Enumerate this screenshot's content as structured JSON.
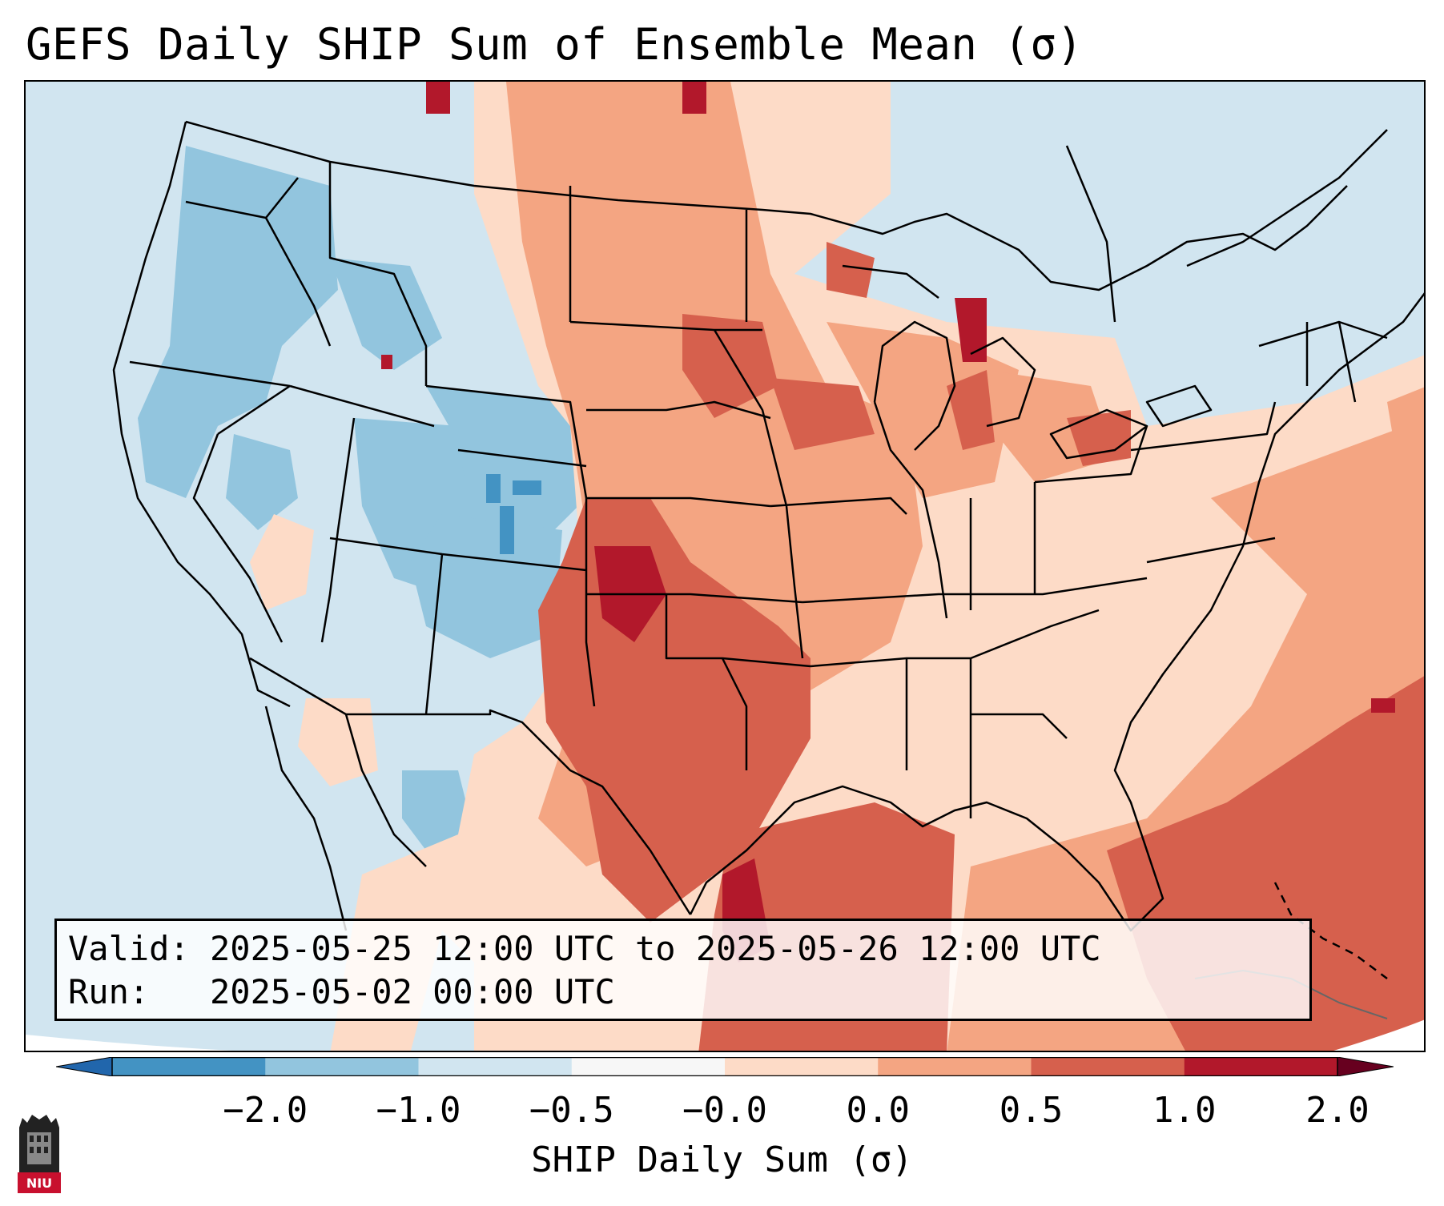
{
  "title": "GEFS Daily SHIP Sum of Ensemble Mean (σ)",
  "info": {
    "valid": "Valid: 2025-05-25 12:00 UTC to 2025-05-26 12:00 UTC",
    "run": "Run:   2025-05-02 00:00 UTC"
  },
  "colorbar": {
    "label": "SHIP Daily Sum (σ)",
    "ticks": [
      "−2.0",
      "−1.0",
      "−0.5",
      "−0.0",
      "0.0",
      "0.5",
      "1.0",
      "2.0"
    ],
    "colors": [
      "#4393c3",
      "#92c5de",
      "#d1e5f0",
      "#f7f7f7",
      "#fddbc7",
      "#f4a582",
      "#d6604d",
      "#b2182b"
    ],
    "extend": "both"
  },
  "logo": {
    "text": "NIU"
  }
}
